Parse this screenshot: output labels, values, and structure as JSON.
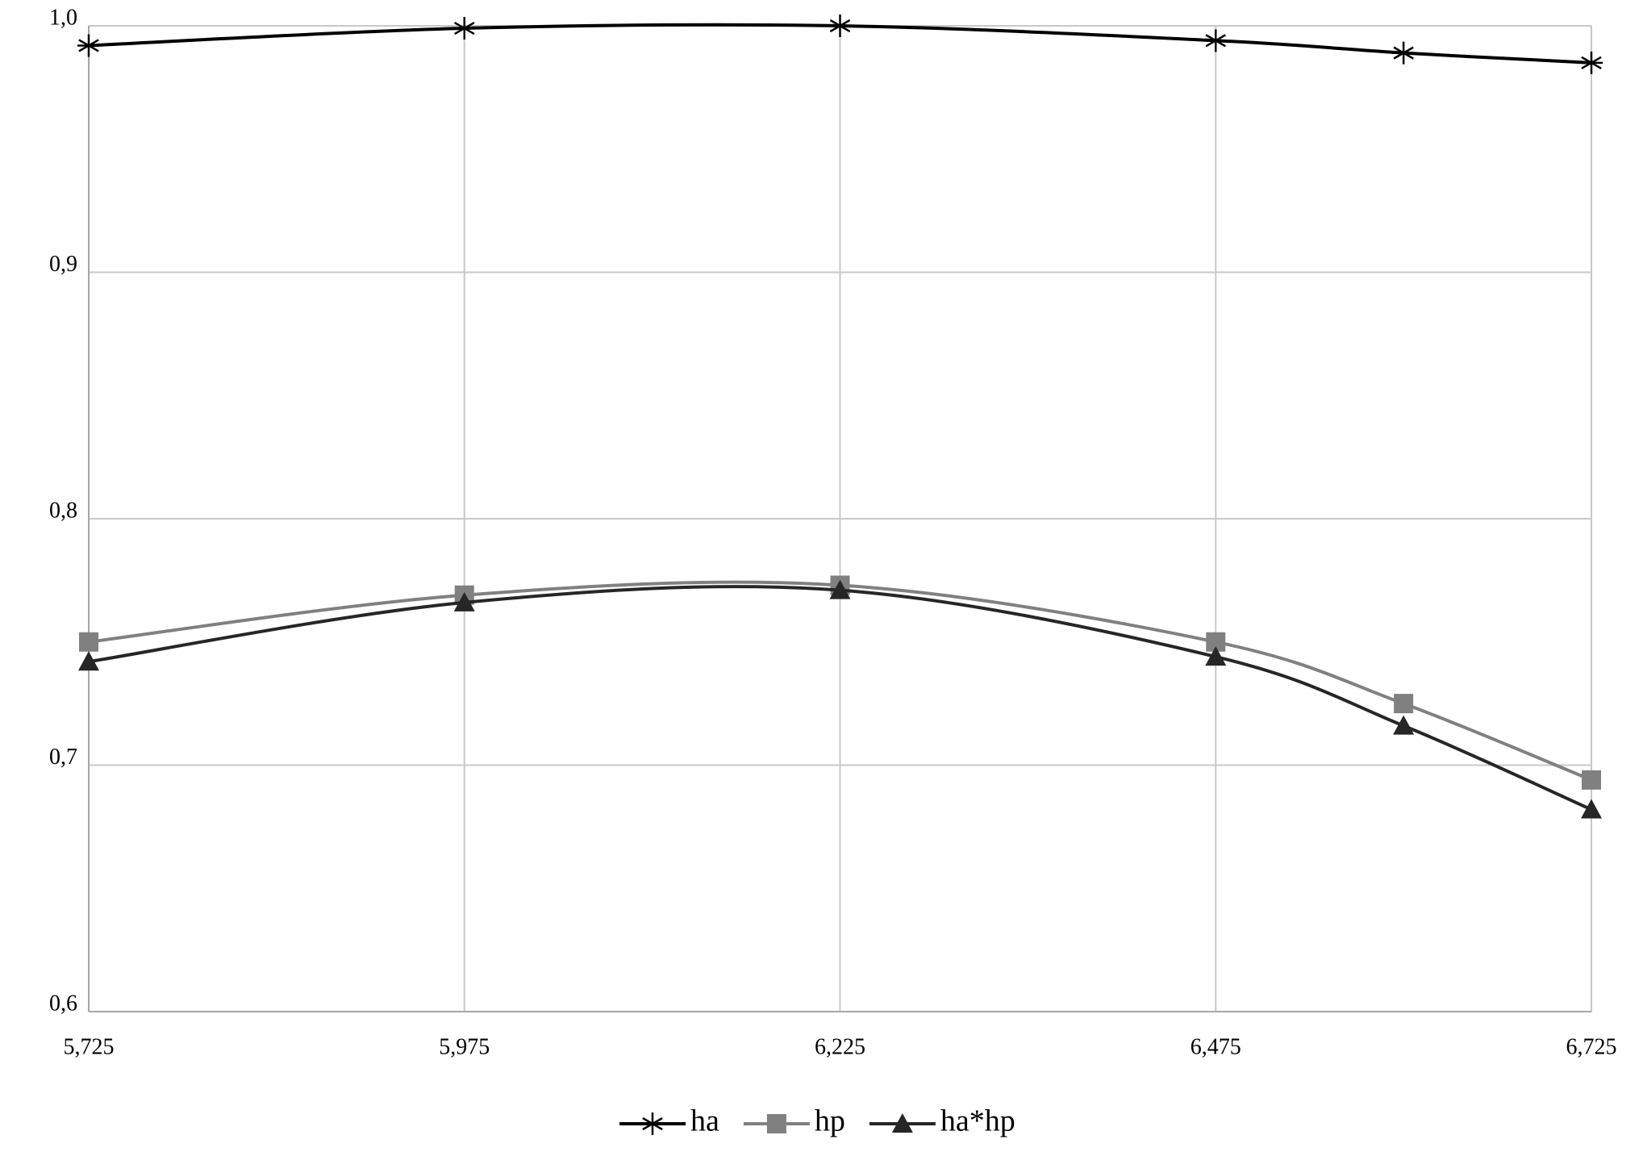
{
  "chart_data": {
    "type": "line",
    "x": [
      5.725,
      5.975,
      6.225,
      6.475,
      6.6,
      6.725
    ],
    "series": [
      {
        "name": "ha",
        "color": "#000000",
        "marker": "star",
        "values": [
          0.992,
          0.999,
          1.0,
          0.994,
          0.989,
          0.985
        ]
      },
      {
        "name": "hp",
        "color": "#808080",
        "marker": "square",
        "values": [
          0.75,
          0.769,
          0.773,
          0.75,
          0.725,
          0.694
        ]
      },
      {
        "name": "ha*hp",
        "color": "#262626",
        "marker": "triangle",
        "values": [
          0.742,
          0.766,
          0.771,
          0.744,
          0.716,
          0.682
        ]
      }
    ],
    "xlim": [
      5.725,
      6.725
    ],
    "xticks": [
      {
        "value": 5.725,
        "label": "5,725"
      },
      {
        "value": 5.975,
        "label": "5,975"
      },
      {
        "value": 6.225,
        "label": "6,225"
      },
      {
        "value": 6.475,
        "label": "6,475"
      },
      {
        "value": 6.725,
        "label": "6,725"
      }
    ],
    "ylim": [
      0.6,
      1.0
    ],
    "yticks": [
      {
        "value": 0.6,
        "label": "0,6"
      },
      {
        "value": 0.7,
        "label": "0,7"
      },
      {
        "value": 0.8,
        "label": "0,8"
      },
      {
        "value": 0.9,
        "label": "0,9"
      },
      {
        "value": 1.0,
        "label": "1,0"
      }
    ],
    "grid": true,
    "smooth": true,
    "legend": "bottom"
  }
}
